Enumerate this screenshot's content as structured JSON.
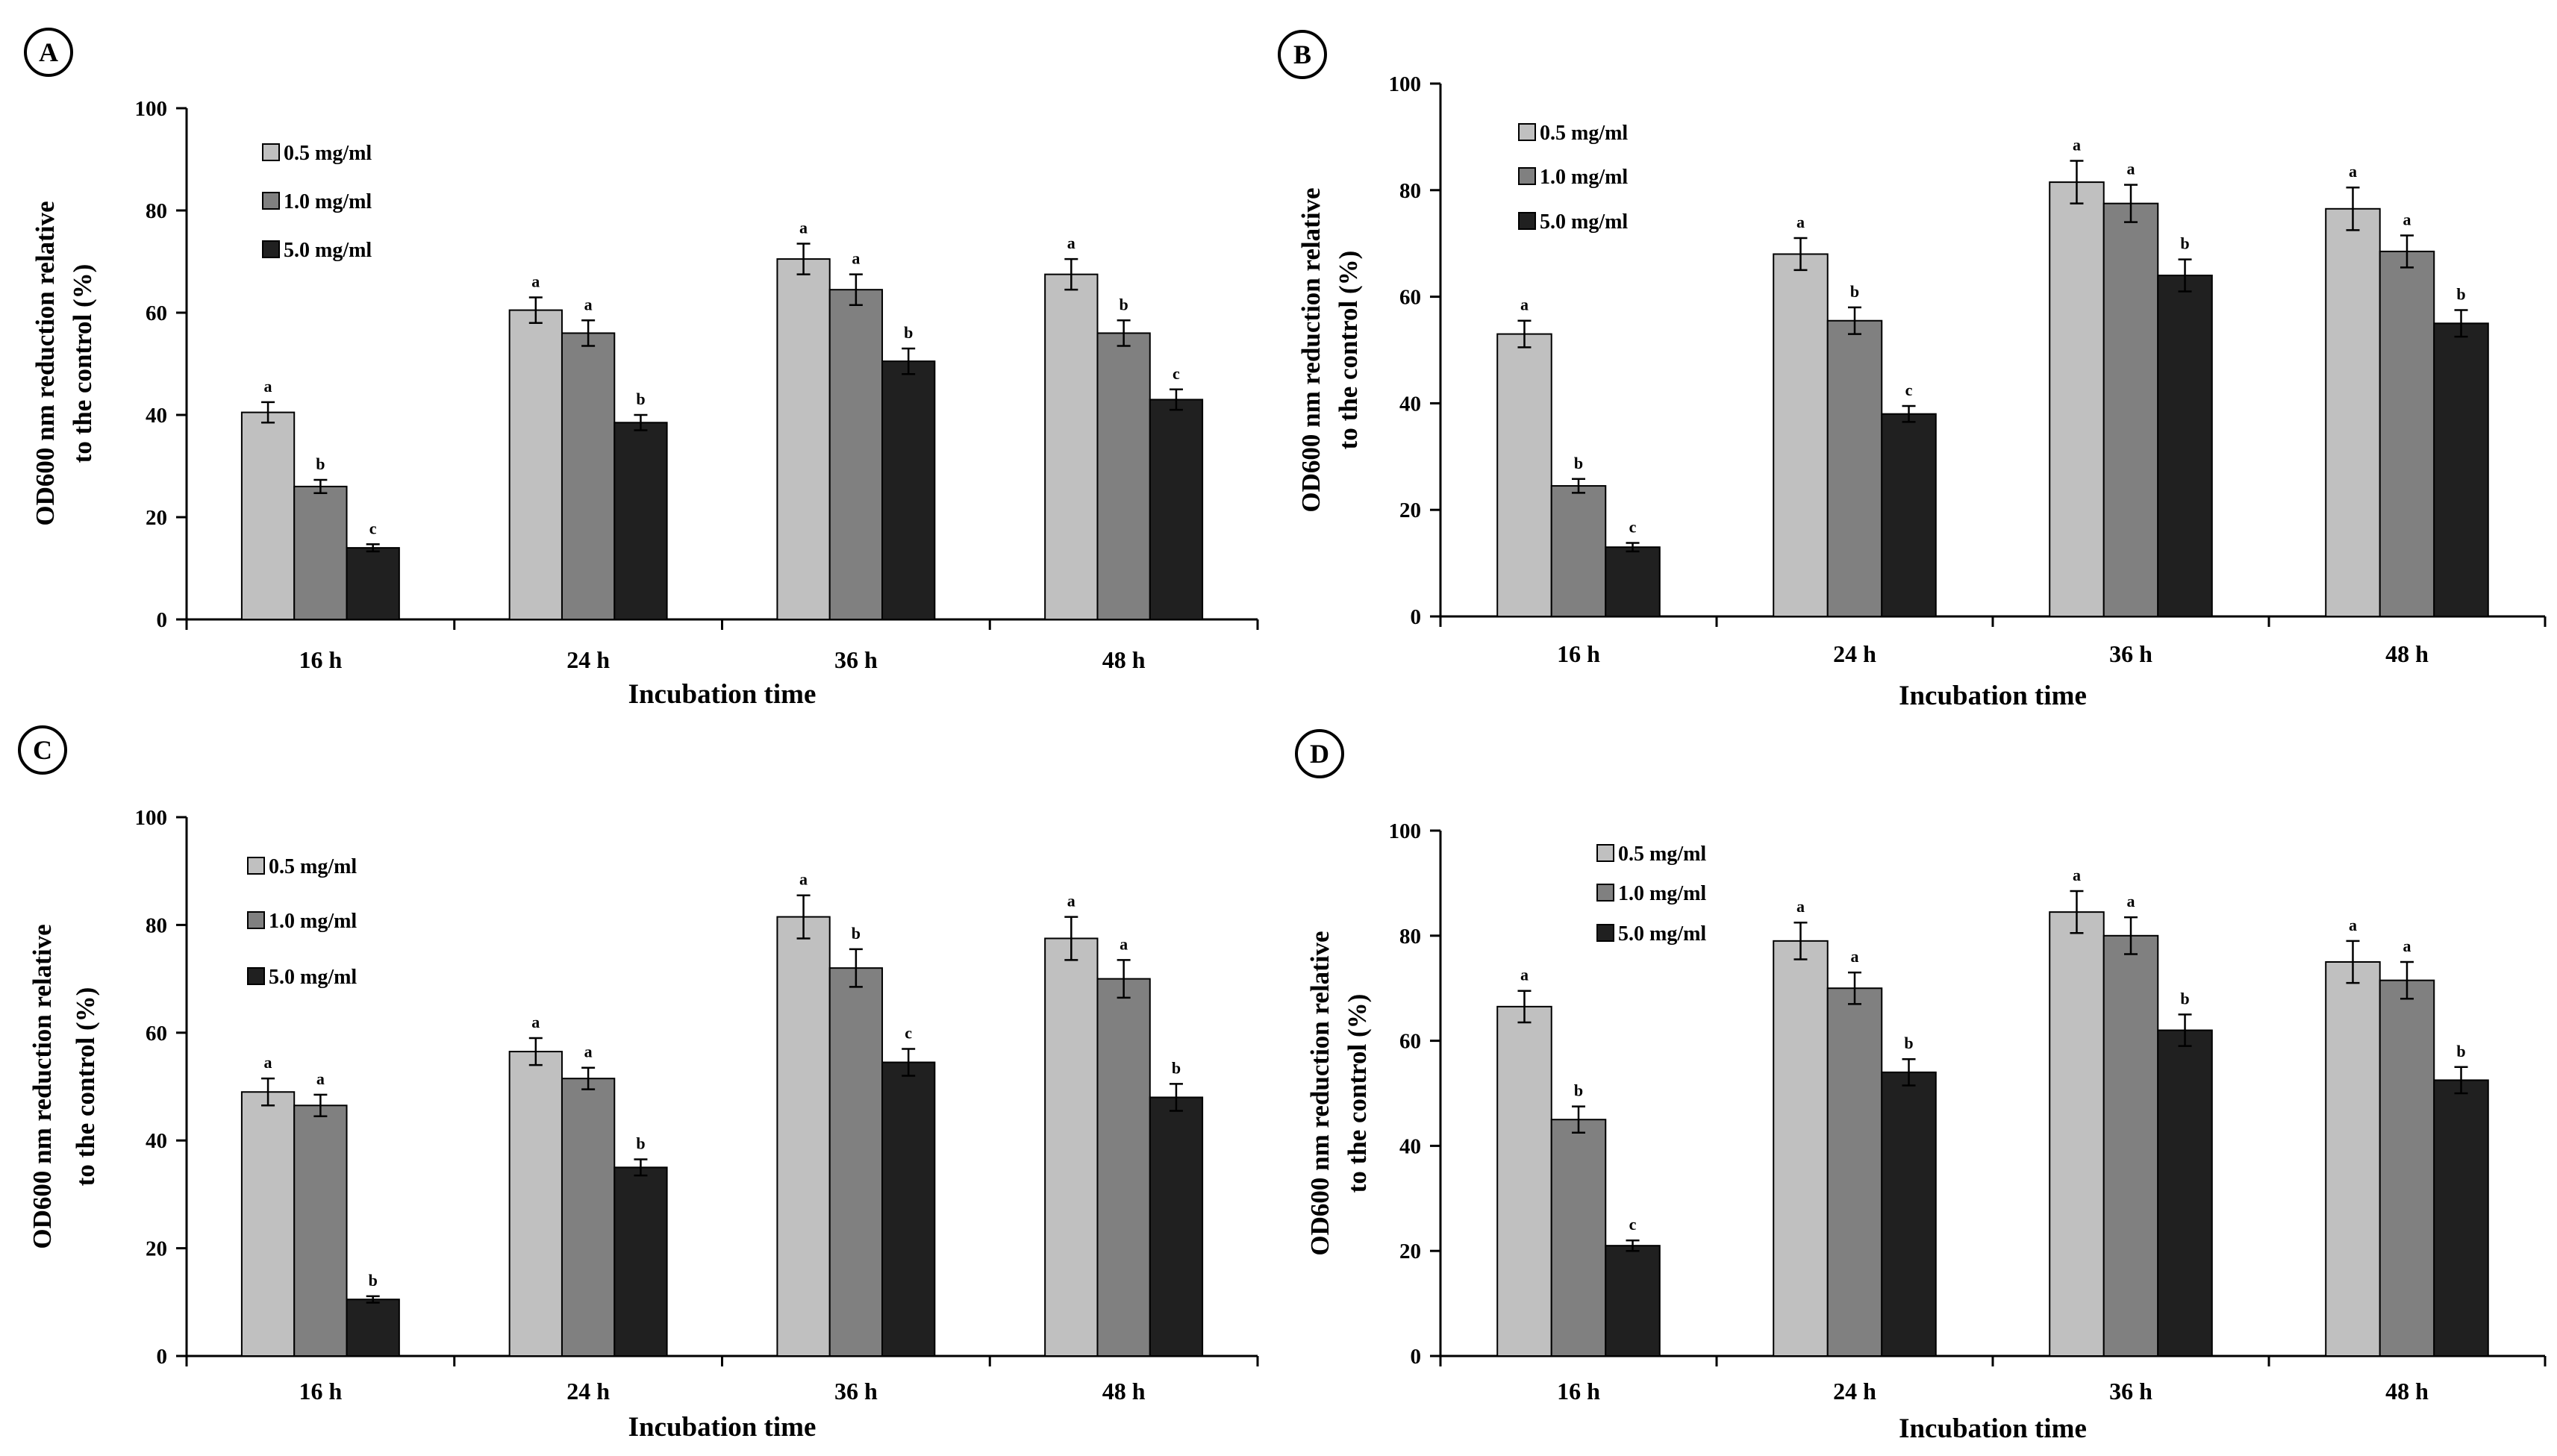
{
  "figure": {
    "colors": {
      "s1": "#c0c0c0",
      "s2": "#808080",
      "s3": "#202020"
    }
  },
  "chart_data": [
    {
      "panel_label": "A",
      "type": "bar",
      "categories": [
        "16 h",
        "24 h",
        "36 h",
        "48 h"
      ],
      "xlabel": "Incubation time",
      "ylabel_lines": [
        "OD600 nm reduction relative",
        "to the control (%)"
      ],
      "ylim": [
        0,
        100
      ],
      "yticks": [
        0,
        20,
        40,
        60,
        80,
        100
      ],
      "legend_position": "top-left",
      "series": [
        {
          "name": "0.5 mg/ml",
          "values": [
            40.5,
            60.5,
            70.5,
            67.5
          ],
          "errors": [
            2.0,
            2.5,
            3.0,
            3.0
          ],
          "letters": [
            "a",
            "a",
            "a",
            "a"
          ]
        },
        {
          "name": "1.0 mg/ml",
          "values": [
            26,
            56,
            64.5,
            56
          ],
          "errors": [
            1.3,
            2.5,
            3.0,
            2.5
          ],
          "letters": [
            "b",
            "a",
            "a",
            "b"
          ]
        },
        {
          "name": "5.0 mg/ml",
          "values": [
            14,
            38.5,
            50.5,
            43
          ],
          "errors": [
            0.7,
            1.5,
            2.5,
            2.0
          ],
          "letters": [
            "c",
            "b",
            "b",
            "c"
          ]
        }
      ]
    },
    {
      "panel_label": "B",
      "type": "bar",
      "categories": [
        "16 h",
        "24 h",
        "36 h",
        "48 h"
      ],
      "xlabel": "Incubation time",
      "ylabel_lines": [
        "OD600 nm reduction relative",
        "to the control (%)"
      ],
      "ylim": [
        0,
        100
      ],
      "yticks": [
        0,
        20,
        40,
        60,
        80,
        100
      ],
      "legend_position": "top-left",
      "series": [
        {
          "name": "0.5 mg/ml",
          "values": [
            53,
            68,
            81.5,
            76.5
          ],
          "errors": [
            2.5,
            3.0,
            4.0,
            4.0
          ],
          "letters": [
            "a",
            "a",
            "a",
            "a"
          ]
        },
        {
          "name": "1.0 mg/ml",
          "values": [
            24.5,
            55.5,
            77.5,
            68.5
          ],
          "errors": [
            1.3,
            2.5,
            3.5,
            3.0
          ],
          "letters": [
            "b",
            "b",
            "a",
            "a"
          ]
        },
        {
          "name": "5.0 mg/ml",
          "values": [
            13,
            38,
            64,
            55
          ],
          "errors": [
            0.8,
            1.5,
            3.0,
            2.5
          ],
          "letters": [
            "c",
            "c",
            "b",
            "b"
          ]
        }
      ]
    },
    {
      "panel_label": "C",
      "type": "bar",
      "categories": [
        "16 h",
        "24 h",
        "36 h",
        "48 h"
      ],
      "xlabel": "Incubation time",
      "ylabel_lines": [
        "OD600 nm reduction relative",
        "to the control (%)"
      ],
      "ylim": [
        0,
        100
      ],
      "yticks": [
        0,
        20,
        40,
        60,
        80,
        100
      ],
      "legend_position": "top-left",
      "series": [
        {
          "name": "0.5 mg/ml",
          "values": [
            49,
            56.5,
            81.5,
            77.5
          ],
          "errors": [
            2.5,
            2.5,
            4.0,
            4.0
          ],
          "letters": [
            "a",
            "a",
            "a",
            "a"
          ]
        },
        {
          "name": "1.0 mg/ml",
          "values": [
            46.5,
            51.5,
            72,
            70
          ],
          "errors": [
            2.0,
            2.0,
            3.5,
            3.5
          ],
          "letters": [
            "a",
            "a",
            "b",
            "a"
          ]
        },
        {
          "name": "5.0 mg/ml",
          "values": [
            10.5,
            35,
            54.5,
            48
          ],
          "errors": [
            0.6,
            1.5,
            2.5,
            2.5
          ],
          "letters": [
            "b",
            "b",
            "c",
            "b"
          ]
        }
      ]
    },
    {
      "panel_label": "D",
      "type": "bar",
      "categories": [
        "16 h",
        "24 h",
        "36 h",
        "48 h"
      ],
      "xlabel": "Incubation time",
      "ylabel_lines": [
        "OD600 nm reduction relative",
        "to the control (%)"
      ],
      "ylim": [
        0,
        100
      ],
      "yticks": [
        0,
        20,
        40,
        60,
        80,
        100
      ],
      "legend_position": "top-left",
      "series": [
        {
          "name": "0.5 mg/ml",
          "values": [
            66.5,
            79,
            84.5,
            75
          ],
          "errors": [
            3.0,
            3.5,
            4.0,
            4.0
          ],
          "letters": [
            "a",
            "a",
            "a",
            "a"
          ]
        },
        {
          "name": "1.0 mg/ml",
          "values": [
            45,
            70,
            80,
            71.5
          ],
          "errors": [
            2.5,
            3.0,
            3.5,
            3.5
          ],
          "letters": [
            "b",
            "a",
            "a",
            "a"
          ]
        },
        {
          "name": "5.0 mg/ml",
          "values": [
            21,
            54,
            62,
            52.5
          ],
          "errors": [
            1.0,
            2.5,
            3.0,
            2.5
          ],
          "letters": [
            "c",
            "b",
            "b",
            "b"
          ]
        }
      ]
    }
  ]
}
